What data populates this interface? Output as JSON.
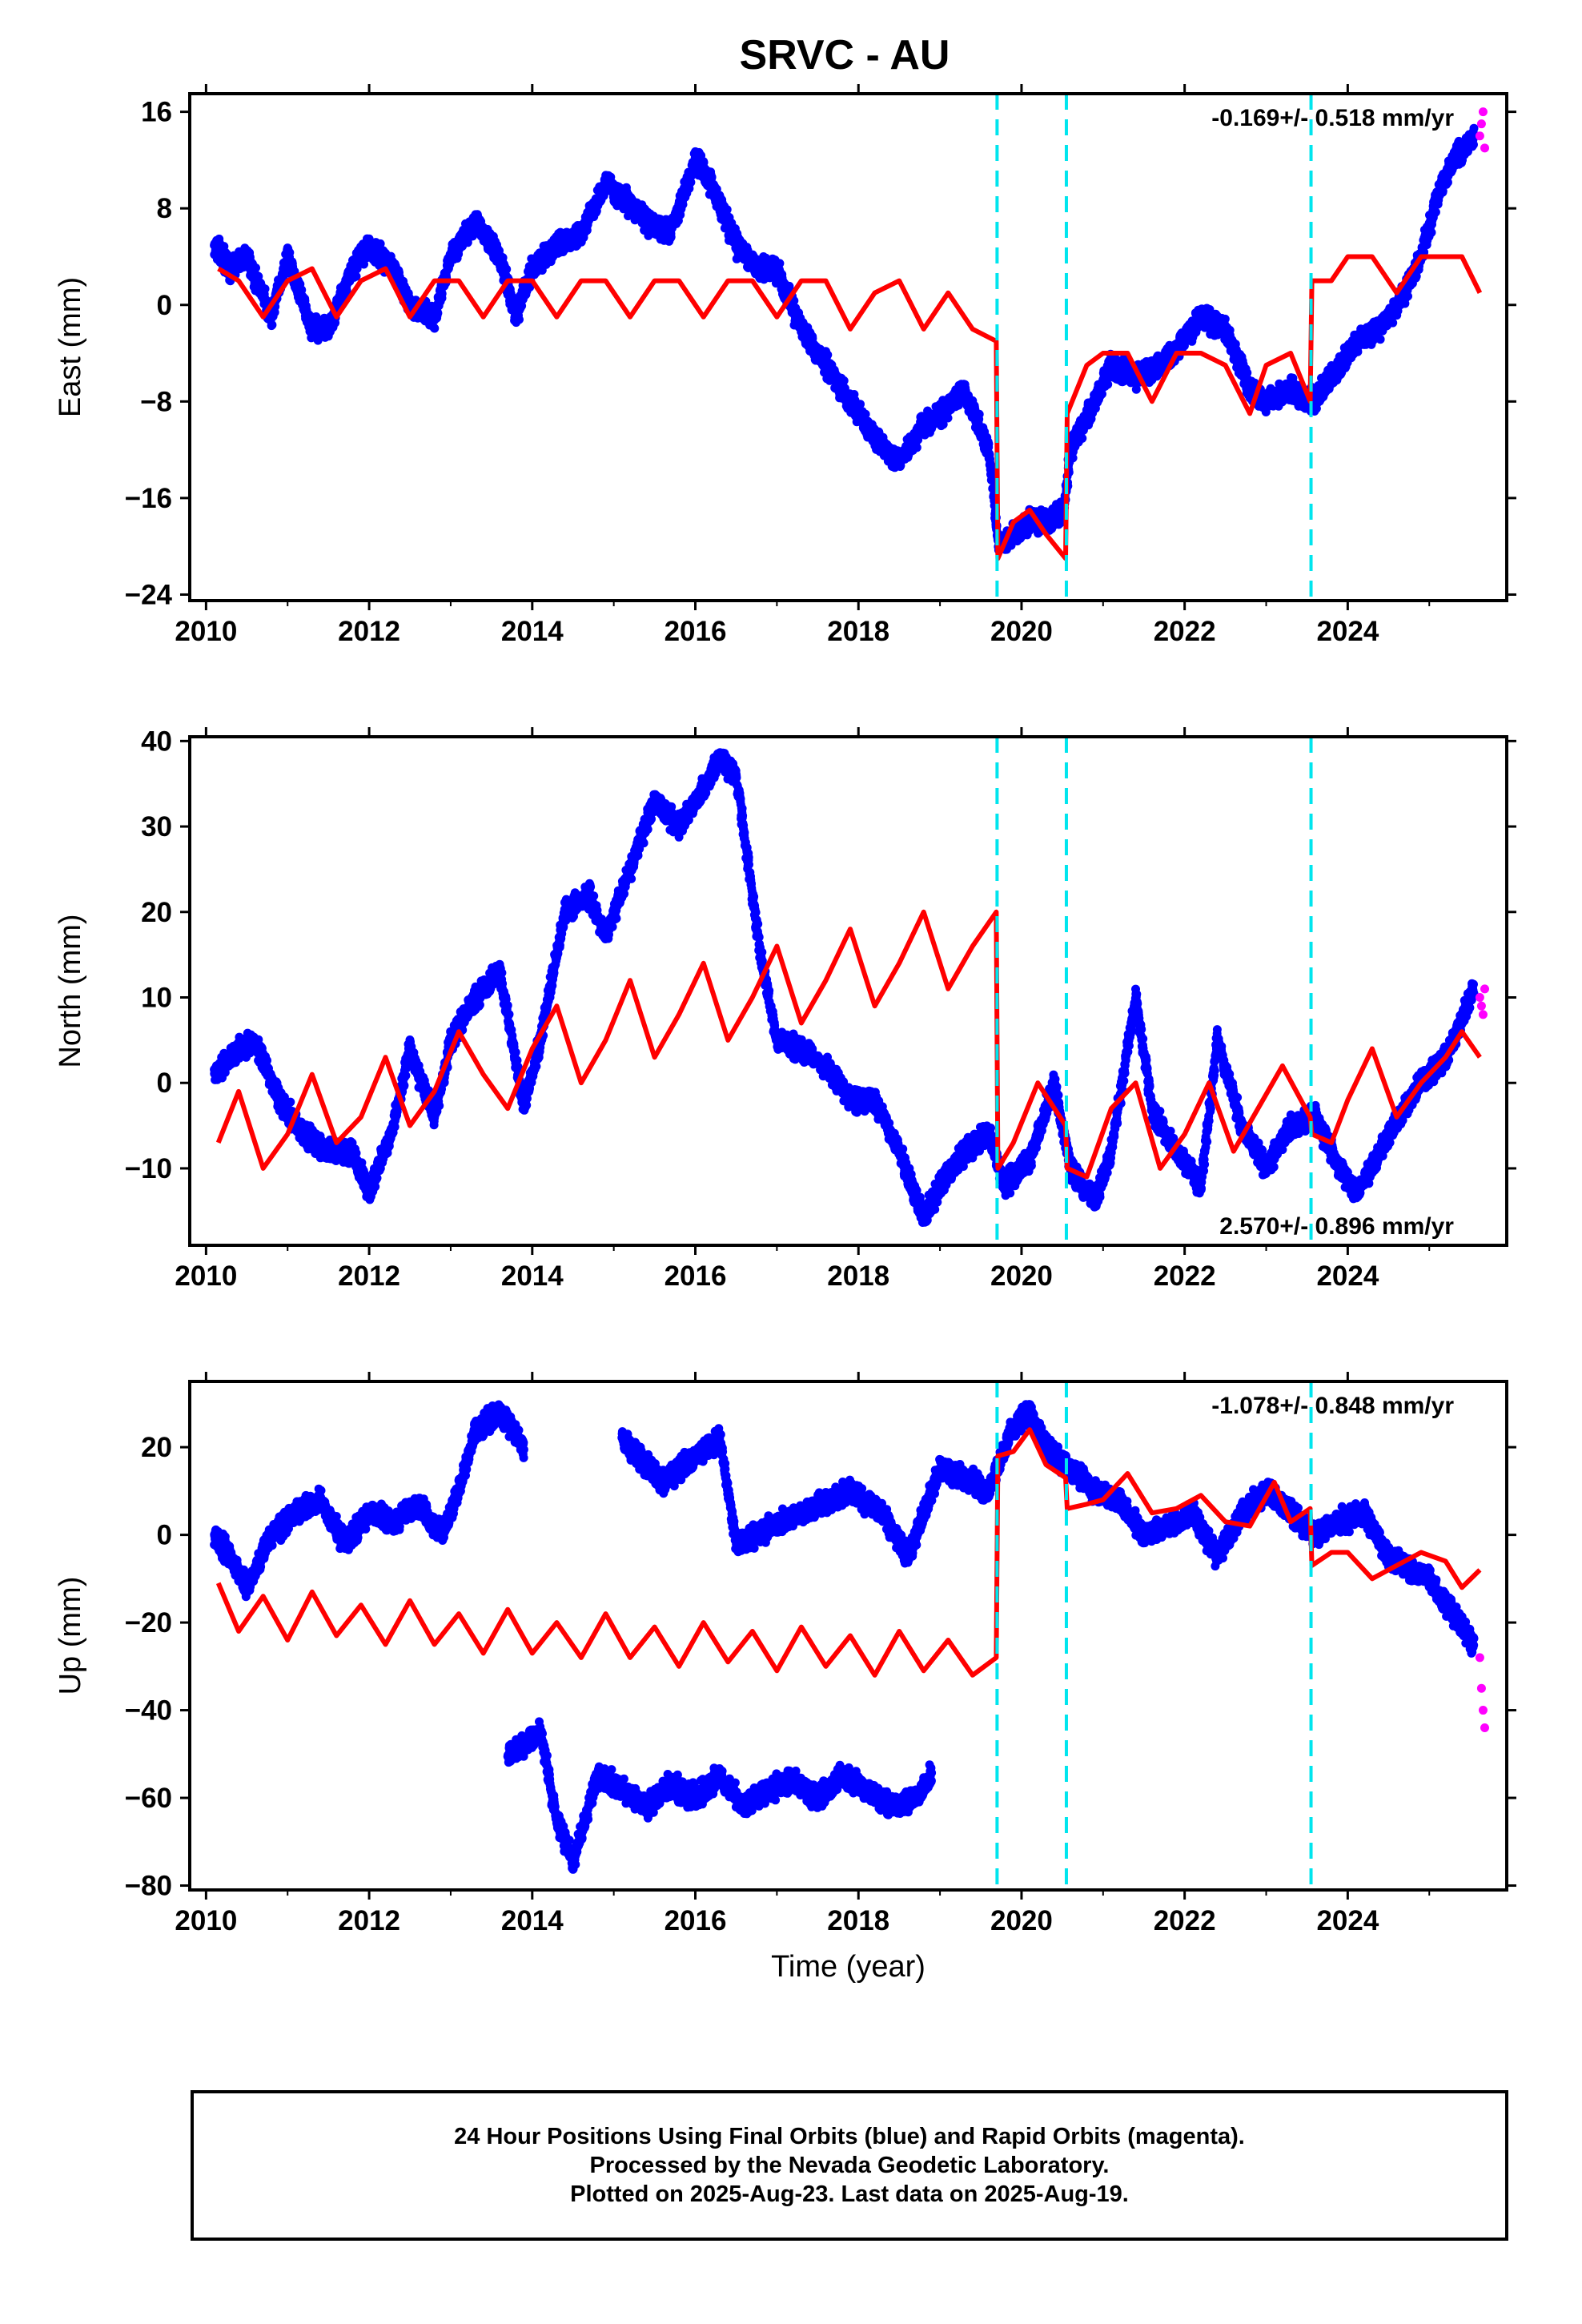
{
  "chart_data": [
    {
      "type": "scatter",
      "panel": "east",
      "title": "SRVC - AU",
      "xlabel": "",
      "ylabel": "East (mm)",
      "xlim": [
        2009.8,
        2025.95
      ],
      "ylim": [
        -24.5,
        17.5
      ],
      "xticks": [
        2010,
        2012,
        2014,
        2016,
        2018,
        2020,
        2022,
        2024
      ],
      "yticks": [
        -24,
        -16,
        -8,
        0,
        8,
        16
      ],
      "ytick_labels": [
        "−24",
        "−16",
        "−8",
        "0",
        "8",
        "16"
      ],
      "rate": "-0.169+/- 0.518 mm/yr",
      "rate_position": "top-right",
      "grid": false,
      "vlines": [
        2019.7,
        2020.55,
        2023.55
      ],
      "series": [
        {
          "role": "final",
          "color": "#0000ff",
          "x": [
            2010.1,
            2010.3,
            2010.5,
            2010.8,
            2011.0,
            2011.3,
            2011.5,
            2011.8,
            2012.0,
            2012.3,
            2012.5,
            2012.8,
            2013.0,
            2013.3,
            2013.6,
            2013.8,
            2014.0,
            2014.3,
            2014.6,
            2014.9,
            2015.1,
            2015.4,
            2015.7,
            2016.0,
            2016.2,
            2016.5,
            2016.8,
            2017.0,
            2017.3,
            2017.6,
            2017.9,
            2018.2,
            2018.5,
            2018.8,
            2019.0,
            2019.3,
            2019.6,
            2019.72,
            2019.9,
            2020.1,
            2020.3,
            2020.52,
            2020.6,
            2020.9,
            2021.1,
            2021.4,
            2021.7,
            2022.0,
            2022.2,
            2022.5,
            2022.8,
            2023.0,
            2023.3,
            2023.5,
            2023.6,
            2023.9,
            2024.1,
            2024.4,
            2024.7,
            2024.9,
            2025.1,
            2025.3,
            2025.55
          ],
          "y": [
            5,
            3,
            4,
            -1,
            4,
            -2,
            -2,
            3,
            5,
            3,
            0,
            -1,
            4,
            7,
            4,
            -1,
            3,
            5,
            6,
            10,
            9,
            7,
            6,
            12,
            10,
            5,
            3,
            3,
            -2,
            -5,
            -8,
            -11,
            -13,
            -10,
            -9,
            -7,
            -12,
            -20,
            -19,
            -18,
            -18,
            -17,
            -12,
            -8,
            -5,
            -6,
            -5,
            -3,
            -1,
            -2,
            -7,
            -8,
            -7,
            -8,
            -8,
            -5,
            -3,
            -2,
            1,
            4,
            9,
            12,
            14
          ]
        },
        {
          "role": "rapid",
          "color": "#ff00ff",
          "x": [
            2025.62,
            2025.64,
            2025.66,
            2025.68
          ],
          "y": [
            14,
            15,
            16,
            13
          ]
        },
        {
          "role": "model",
          "color": "#ff0000",
          "x": [
            2010.15,
            2010.4,
            2010.7,
            2011.0,
            2011.3,
            2011.6,
            2011.9,
            2012.2,
            2012.5,
            2012.8,
            2013.1,
            2013.4,
            2013.7,
            2014.0,
            2014.3,
            2014.6,
            2014.9,
            2015.2,
            2015.5,
            2015.8,
            2016.1,
            2016.4,
            2016.7,
            2017.0,
            2017.3,
            2017.6,
            2017.9,
            2018.2,
            2018.5,
            2018.8,
            2019.1,
            2019.4,
            2019.69,
            2019.71,
            2019.9,
            2020.1,
            2020.3,
            2020.54,
            2020.56,
            2020.8,
            2021.0,
            2021.3,
            2021.6,
            2021.9,
            2022.2,
            2022.5,
            2022.8,
            2023.0,
            2023.3,
            2023.54,
            2023.56,
            2023.8,
            2024.0,
            2024.3,
            2024.6,
            2024.9,
            2025.2,
            2025.4,
            2025.62
          ],
          "y": [
            3,
            2,
            -1,
            2,
            3,
            -1,
            2,
            3,
            -1,
            2,
            2,
            -1,
            2,
            2,
            -1,
            2,
            2,
            -1,
            2,
            2,
            -1,
            2,
            2,
            -1,
            2,
            2,
            -2,
            1,
            2,
            -2,
            1,
            -2,
            -3,
            -21,
            -18,
            -17,
            -19,
            -21,
            -9,
            -5,
            -4,
            -4,
            -8,
            -4,
            -4,
            -5,
            -9,
            -5,
            -4,
            -8,
            2,
            2,
            4,
            4,
            1,
            4,
            4,
            4,
            1
          ]
        }
      ]
    },
    {
      "type": "scatter",
      "panel": "north",
      "title": "",
      "xlabel": "",
      "ylabel": "North (mm)",
      "xlim": [
        2009.8,
        2025.95
      ],
      "ylim": [
        -19,
        40.5
      ],
      "xticks": [
        2010,
        2012,
        2014,
        2016,
        2018,
        2020,
        2022,
        2024
      ],
      "yticks": [
        -10,
        0,
        10,
        20,
        30,
        40
      ],
      "ytick_labels": [
        "−10",
        "0",
        "10",
        "20",
        "30",
        "40"
      ],
      "rate": "2.570+/- 0.896 mm/yr",
      "rate_position": "bottom-right",
      "grid": false,
      "vlines": [
        2019.7,
        2020.55,
        2023.55
      ],
      "series": [
        {
          "role": "final",
          "color": "#0000ff",
          "x": [
            2010.1,
            2010.3,
            2010.6,
            2010.9,
            2011.2,
            2011.5,
            2011.8,
            2012.0,
            2012.3,
            2012.5,
            2012.8,
            2013.0,
            2013.3,
            2013.6,
            2013.9,
            2014.1,
            2014.4,
            2014.7,
            2014.9,
            2015.2,
            2015.5,
            2015.8,
            2016.0,
            2016.3,
            2016.5,
            2016.8,
            2017.0,
            2017.3,
            2017.6,
            2017.9,
            2018.2,
            2018.5,
            2018.8,
            2019.0,
            2019.3,
            2019.6,
            2019.8,
            2020.1,
            2020.4,
            2020.6,
            2020.9,
            2021.1,
            2021.4,
            2021.6,
            2021.9,
            2022.2,
            2022.4,
            2022.7,
            2023.0,
            2023.3,
            2023.6,
            2023.9,
            2024.1,
            2024.4,
            2024.7,
            2024.9,
            2025.2,
            2025.55
          ],
          "y": [
            1,
            3,
            5,
            -2,
            -6,
            -8,
            -8,
            -13,
            -5,
            4,
            -4,
            5,
            10,
            13,
            -3,
            5,
            20,
            22,
            17,
            25,
            33,
            30,
            33,
            38,
            36,
            15,
            5,
            4,
            2,
            -2,
            -2,
            -8,
            -16,
            -12,
            -8,
            -6,
            -12,
            -9,
            0,
            -10,
            -14,
            -8,
            10,
            -3,
            -8,
            -12,
            5,
            -5,
            -10,
            -5,
            -4,
            -10,
            -13,
            -8,
            -3,
            0,
            3,
            11
          ]
        },
        {
          "role": "rapid",
          "color": "#ff00ff",
          "x": [
            2025.62,
            2025.64,
            2025.66,
            2025.68
          ],
          "y": [
            10,
            9,
            8,
            11
          ]
        },
        {
          "role": "model",
          "color": "#ff0000",
          "x": [
            2010.15,
            2010.4,
            2010.7,
            2011.0,
            2011.3,
            2011.6,
            2011.9,
            2012.2,
            2012.5,
            2012.8,
            2013.1,
            2013.4,
            2013.7,
            2014.0,
            2014.3,
            2014.6,
            2014.9,
            2015.2,
            2015.5,
            2015.8,
            2016.1,
            2016.4,
            2016.7,
            2017.0,
            2017.3,
            2017.6,
            2017.9,
            2018.2,
            2018.5,
            2018.8,
            2019.1,
            2019.4,
            2019.69,
            2019.71,
            2019.9,
            2020.2,
            2020.54,
            2020.56,
            2020.8,
            2021.1,
            2021.4,
            2021.7,
            2022.0,
            2022.3,
            2022.6,
            2022.9,
            2023.2,
            2023.54,
            2023.56,
            2023.8,
            2024.0,
            2024.3,
            2024.6,
            2024.9,
            2025.2,
            2025.4,
            2025.62
          ],
          "y": [
            -7,
            -1,
            -10,
            -6,
            1,
            -7,
            -4,
            3,
            -5,
            -1,
            6,
            1,
            -3,
            4,
            9,
            0,
            5,
            12,
            3,
            8,
            14,
            5,
            10,
            16,
            7,
            12,
            18,
            9,
            14,
            20,
            11,
            16,
            20,
            -10,
            -7,
            0,
            -5,
            -10,
            -11,
            -3,
            0,
            -10,
            -6,
            0,
            -8,
            -3,
            2,
            -4,
            -6,
            -7,
            -2,
            4,
            -4,
            0,
            3,
            6,
            3
          ]
        }
      ]
    },
    {
      "type": "scatter",
      "panel": "up",
      "title": "",
      "xlabel": "Time (year)",
      "ylabel": "Up (mm)",
      "xlim": [
        2009.8,
        2025.95
      ],
      "ylim": [
        -81,
        35
      ],
      "xticks": [
        2010,
        2012,
        2014,
        2016,
        2018,
        2020,
        2022,
        2024
      ],
      "yticks": [
        -80,
        -60,
        -40,
        -20,
        0,
        20
      ],
      "ytick_labels": [
        "−80",
        "−60",
        "−40",
        "−20",
        "0",
        "20"
      ],
      "rate": "-1.078+/- 0.848 mm/yr",
      "rate_position": "top-right",
      "grid": false,
      "vlines": [
        2019.7,
        2020.55,
        2023.55
      ],
      "series": [
        {
          "role": "final",
          "color": "#0000ff",
          "x": [
            2010.1,
            2010.3,
            2010.5,
            2010.8,
            2011.1,
            2011.4,
            2011.7,
            2012.0,
            2012.3,
            2012.6,
            2012.9,
            2013.1,
            2013.3,
            2013.6,
            2013.9,
            2013.7,
            2013.9,
            2014.1,
            2014.3,
            2014.5,
            2014.8,
            2015.1,
            2015.4,
            2015.7,
            2016.0,
            2016.3,
            2016.6,
            2016.9,
            2017.2,
            2017.5,
            2017.8,
            2018.1,
            2018.4,
            2018.7,
            2018.9,
            2015.1,
            2015.6,
            2016.3,
            2016.5,
            2017.9,
            2018.3,
            2018.6,
            2019.0,
            2019.4,
            2019.6,
            2019.9,
            2020.1,
            2020.3,
            2020.6,
            2020.9,
            2021.2,
            2021.5,
            2021.8,
            2022.1,
            2022.4,
            2022.7,
            2023.0,
            2023.3,
            2023.6,
            2023.9,
            2024.2,
            2024.5,
            2024.8,
            2025.0,
            2025.3,
            2025.55
          ],
          "y": [
            0,
            -5,
            -12,
            0,
            5,
            8,
            -2,
            5,
            3,
            7,
            0,
            10,
            24,
            28,
            20,
            -50,
            -48,
            -45,
            -65,
            -75,
            -55,
            -58,
            -62,
            -57,
            -60,
            -55,
            -62,
            -58,
            -56,
            -60,
            -55,
            -58,
            -62,
            -60,
            -55,
            22,
            12,
            22,
            -2,
            10,
            5,
            -5,
            15,
            12,
            10,
            25,
            28,
            20,
            15,
            10,
            8,
            0,
            2,
            5,
            -5,
            5,
            10,
            5,
            0,
            3,
            5,
            -5,
            -8,
            -10,
            -18,
            -25
          ]
        },
        {
          "role": "rapid",
          "color": "#ff00ff",
          "x": [
            2025.62,
            2025.64,
            2025.66,
            2025.68
          ],
          "y": [
            -28,
            -35,
            -40,
            -44
          ]
        },
        {
          "role": "model",
          "color": "#ff0000",
          "x": [
            2010.15,
            2010.4,
            2010.7,
            2011.0,
            2011.3,
            2011.6,
            2011.9,
            2012.2,
            2012.5,
            2012.8,
            2013.1,
            2013.4,
            2013.7,
            2014.0,
            2014.3,
            2014.6,
            2014.9,
            2015.2,
            2015.5,
            2015.8,
            2016.1,
            2016.4,
            2016.7,
            2017.0,
            2017.3,
            2017.6,
            2017.9,
            2018.2,
            2018.5,
            2018.8,
            2019.1,
            2019.4,
            2019.69,
            2019.71,
            2019.9,
            2020.1,
            2020.3,
            2020.54,
            2020.56,
            2020.8,
            2021.0,
            2021.3,
            2021.6,
            2021.9,
            2022.2,
            2022.5,
            2022.8,
            2023.1,
            2023.3,
            2023.54,
            2023.56,
            2023.8,
            2024.0,
            2024.3,
            2024.6,
            2024.9,
            2025.2,
            2025.4,
            2025.62
          ],
          "y": [
            -11,
            -22,
            -14,
            -24,
            -13,
            -23,
            -16,
            -25,
            -15,
            -25,
            -18,
            -27,
            -17,
            -27,
            -20,
            -28,
            -18,
            -28,
            -21,
            -30,
            -20,
            -29,
            -22,
            -31,
            -21,
            -30,
            -23,
            -32,
            -22,
            -31,
            -24,
            -32,
            -28,
            18,
            19,
            24,
            16,
            13,
            6,
            7,
            8,
            14,
            5,
            6,
            9,
            3,
            2,
            12,
            3,
            6,
            -7,
            -4,
            -4,
            -10,
            -7,
            -4,
            -6,
            -12,
            -8
          ]
        }
      ]
    }
  ],
  "footer": {
    "line1": "24 Hour Positions Using Final Orbits (blue) and Rapid Orbits (magenta).",
    "line2": "Processed by the Nevada Geodetic Laboratory.",
    "line3": "Plotted on 2025-Aug-23. Last data on 2025-Aug-19."
  },
  "colors": {
    "final": "#0000ff",
    "rapid": "#ff00ff",
    "model": "#ff0000",
    "offset_line": "#00e5ee"
  }
}
